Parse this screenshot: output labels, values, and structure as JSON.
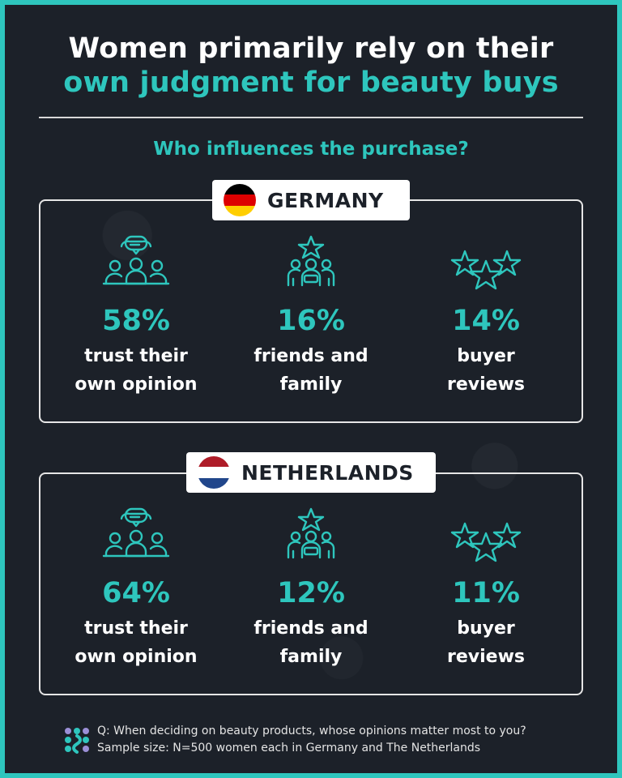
{
  "header": {
    "title_line1": "Women primarily rely on their",
    "title_line2": "own judgment for beauty buys",
    "subtitle": "Who influences the purchase?"
  },
  "colors": {
    "accent": "#2ec6bd",
    "background": "#1c2129",
    "text": "#ffffff"
  },
  "sections": [
    {
      "country": "GERMANY",
      "flag_colors": [
        "#000000",
        "#dd0000",
        "#ffce00"
      ],
      "stats": [
        {
          "icon": "speech-group-icon",
          "percent": "58%",
          "label_line1": "trust their",
          "label_line2": "own opinion"
        },
        {
          "icon": "star-family-icon",
          "percent": "16%",
          "label_line1": "friends and",
          "label_line2": "family"
        },
        {
          "icon": "three-stars-icon",
          "percent": "14%",
          "label_line1": "buyer",
          "label_line2": "reviews"
        }
      ]
    },
    {
      "country": "NETHERLANDS",
      "flag_colors": [
        "#ae1c28",
        "#ffffff",
        "#21468b"
      ],
      "stats": [
        {
          "icon": "speech-group-icon",
          "percent": "64%",
          "label_line1": "trust their",
          "label_line2": "own opinion"
        },
        {
          "icon": "star-family-icon",
          "percent": "12%",
          "label_line1": "friends and",
          "label_line2": "family"
        },
        {
          "icon": "three-stars-icon",
          "percent": "11%",
          "label_line1": "buyer",
          "label_line2": "reviews"
        }
      ]
    }
  ],
  "footer": {
    "question": "Q: When deciding on beauty products, whose opinions matter most to you?",
    "sample": "Sample size: N=500 women each in Germany and The Netherlands"
  }
}
